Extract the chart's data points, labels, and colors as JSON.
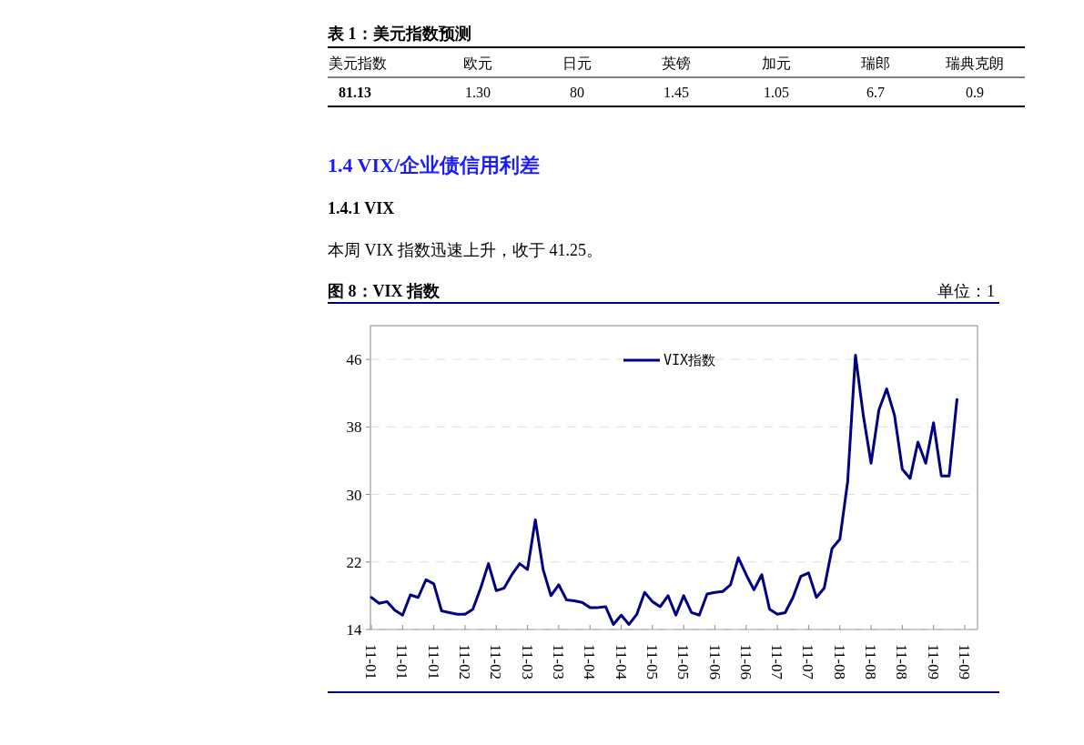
{
  "chart_data": [
    {
      "type": "other",
      "title": "表 1：美元指数预测",
      "categories": [
        "美元指数",
        "欧元",
        "日元",
        "英镑",
        "加元",
        "瑞郎",
        "瑞典克朗"
      ],
      "value_labels": [
        "81.13",
        "1.30",
        "80",
        "1.45",
        "1.05",
        "6.7",
        "0.9"
      ]
    },
    {
      "type": "line",
      "title": "图 8：VIX 指数",
      "annotations": [
        "1.4  VIX/企业债信用利差",
        "1.4.1 VIX",
        "本周 VIX 指数迅速上升，收于 41.25。",
        "单位：1"
      ],
      "categories": [
        "11-01",
        null,
        null,
        null,
        "11-01",
        null,
        null,
        null,
        "11-01",
        null,
        null,
        null,
        "11-02",
        null,
        null,
        null,
        "11-02",
        null,
        null,
        null,
        "11-03",
        null,
        null,
        null,
        "11-03",
        null,
        null,
        null,
        "11-04",
        null,
        null,
        null,
        "11-04",
        null,
        null,
        null,
        "11-05",
        null,
        null,
        null,
        "11-05",
        null,
        null,
        null,
        "11-06",
        null,
        null,
        null,
        "11-06",
        null,
        null,
        null,
        "11-07",
        null,
        null,
        null,
        "11-07",
        null,
        null,
        null,
        "11-08",
        null,
        null,
        null,
        "11-08",
        null,
        null,
        null,
        "11-08",
        null,
        null,
        null,
        "11-09",
        null,
        null,
        null,
        "11-09"
      ],
      "series": [
        {
          "name": "VIX指数",
          "color": "#000080",
          "values": [
            17.8,
            17.1,
            17.3,
            16.3,
            15.7,
            18.1,
            17.8,
            19.9,
            19.4,
            16.2,
            16.0,
            15.8,
            15.8,
            16.4,
            18.9,
            21.8,
            18.6,
            18.9,
            20.5,
            21.8,
            21.1,
            27.0,
            21.1,
            18.0,
            19.3,
            17.5,
            17.4,
            17.2,
            16.6,
            16.6,
            16.7,
            14.6,
            15.7,
            14.6,
            15.8,
            18.4,
            17.3,
            16.7,
            18.0,
            15.7,
            18.0,
            16.0,
            15.7,
            18.2,
            18.4,
            18.5,
            19.3,
            22.5,
            20.5,
            18.7,
            20.5,
            16.4,
            15.8,
            16.0,
            17.8,
            20.3,
            20.7,
            17.8,
            18.9,
            23.6,
            24.7,
            31.5,
            46.5,
            39.4,
            33.7,
            40.0,
            42.5,
            39.4,
            33.0,
            31.9,
            36.2,
            33.7,
            38.5,
            32.2,
            32.2,
            41.25,
            null
          ]
        }
      ],
      "ylim": [
        14,
        50
      ],
      "yticks": [
        14,
        22,
        30,
        38,
        46
      ],
      "grid": "y",
      "legend": "top",
      "line_style": "solid",
      "marker": "none"
    }
  ]
}
